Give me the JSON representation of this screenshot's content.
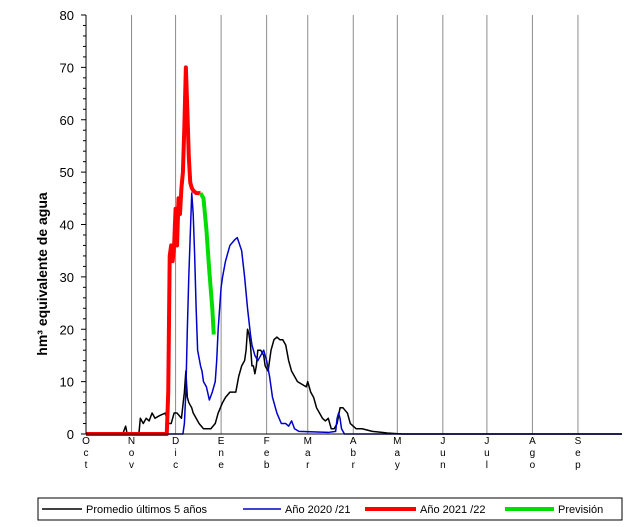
{
  "chart_data": {
    "type": "line",
    "title": "",
    "xlabel": "",
    "ylabel": "hm³ equivalente de agua",
    "ylim": [
      0,
      80
    ],
    "y_ticks": [
      0,
      10,
      20,
      30,
      40,
      50,
      60,
      70,
      80
    ],
    "xlim": [
      0,
      365
    ],
    "grid": "vertical",
    "legend_placement": "bottom",
    "months": [
      {
        "label": "Oct",
        "day": 0
      },
      {
        "label": "Nov",
        "day": 31
      },
      {
        "label": "Dic",
        "day": 61
      },
      {
        "label": "Ene",
        "day": 92
      },
      {
        "label": "Feb",
        "day": 123
      },
      {
        "label": "Mar",
        "day": 151
      },
      {
        "label": "Abr",
        "day": 182
      },
      {
        "label": "May",
        "day": 212
      },
      {
        "label": "Jun",
        "day": 243
      },
      {
        "label": "Jul",
        "day": 273
      },
      {
        "label": "Ago",
        "day": 304
      },
      {
        "label": "Sep",
        "day": 335
      }
    ],
    "series": [
      {
        "name": "Promedio últimos 5 años",
        "color": "#000000",
        "width": 1.5,
        "points": [
          [
            0,
            0
          ],
          [
            25,
            0
          ],
          [
            27,
            1.5
          ],
          [
            28,
            0
          ],
          [
            36,
            0
          ],
          [
            37,
            3
          ],
          [
            39,
            2
          ],
          [
            41,
            3
          ],
          [
            43,
            2.5
          ],
          [
            45,
            4
          ],
          [
            47,
            3
          ],
          [
            50,
            3.5
          ],
          [
            54,
            4
          ],
          [
            56,
            2
          ],
          [
            58,
            2
          ],
          [
            60,
            4
          ],
          [
            62,
            4
          ],
          [
            65,
            3
          ],
          [
            67,
            8
          ],
          [
            68,
            12
          ],
          [
            69,
            7
          ],
          [
            70,
            6
          ],
          [
            72,
            5
          ],
          [
            73,
            4
          ],
          [
            75,
            3
          ],
          [
            77,
            2
          ],
          [
            80,
            1
          ],
          [
            85,
            1
          ],
          [
            88,
            2
          ],
          [
            90,
            4
          ],
          [
            93,
            6
          ],
          [
            95,
            7
          ],
          [
            98,
            8
          ],
          [
            100,
            8
          ],
          [
            102,
            8
          ],
          [
            104,
            11
          ],
          [
            106,
            13
          ],
          [
            108,
            14
          ],
          [
            109,
            16
          ],
          [
            110,
            20
          ],
          [
            111,
            19
          ],
          [
            112,
            17
          ],
          [
            113,
            13
          ],
          [
            114,
            13
          ],
          [
            115,
            11.5
          ],
          [
            116,
            13
          ],
          [
            117,
            16
          ],
          [
            119,
            16
          ],
          [
            121,
            15
          ],
          [
            122,
            13
          ],
          [
            124,
            12
          ],
          [
            126,
            16
          ],
          [
            128,
            18
          ],
          [
            130,
            18.5
          ],
          [
            132,
            18
          ],
          [
            134,
            18
          ],
          [
            136,
            17
          ],
          [
            138,
            14
          ],
          [
            140,
            12
          ],
          [
            142,
            11
          ],
          [
            144,
            10
          ],
          [
            147,
            9.5
          ],
          [
            150,
            9
          ],
          [
            151,
            10
          ],
          [
            153,
            8
          ],
          [
            155,
            7
          ],
          [
            157,
            5
          ],
          [
            159,
            4
          ],
          [
            161,
            3
          ],
          [
            163,
            2.5
          ],
          [
            165,
            3
          ],
          [
            167,
            1
          ],
          [
            169,
            1
          ],
          [
            171,
            2
          ],
          [
            173,
            5
          ],
          [
            175,
            5
          ],
          [
            178,
            4
          ],
          [
            180,
            2
          ],
          [
            184,
            1
          ],
          [
            188,
            1
          ],
          [
            195,
            0.5
          ],
          [
            205,
            0.2
          ],
          [
            215,
            0
          ],
          [
            365,
            0
          ]
        ]
      },
      {
        "name": "Año 2020 /21",
        "color": "#0000CC",
        "width": 1.5,
        "points": [
          [
            0,
            0
          ],
          [
            66,
            0
          ],
          [
            67,
            2
          ],
          [
            68,
            8
          ],
          [
            69,
            20
          ],
          [
            70,
            30
          ],
          [
            71,
            38
          ],
          [
            72,
            46
          ],
          [
            73,
            42
          ],
          [
            74,
            34
          ],
          [
            75,
            24
          ],
          [
            76,
            16
          ],
          [
            78,
            13
          ],
          [
            79,
            12
          ],
          [
            80,
            10
          ],
          [
            82,
            9
          ],
          [
            84,
            6.5
          ],
          [
            86,
            8
          ],
          [
            88,
            10
          ],
          [
            89,
            14
          ],
          [
            90,
            20
          ],
          [
            91,
            24
          ],
          [
            92,
            28
          ],
          [
            93,
            30
          ],
          [
            95,
            33
          ],
          [
            98,
            36
          ],
          [
            101,
            37
          ],
          [
            103,
            37.5
          ],
          [
            106,
            35
          ],
          [
            108,
            30
          ],
          [
            110,
            24
          ],
          [
            112,
            19
          ],
          [
            113,
            17
          ],
          [
            114,
            16
          ],
          [
            115,
            15
          ],
          [
            117,
            14
          ],
          [
            119,
            15
          ],
          [
            121,
            16
          ],
          [
            123,
            14
          ],
          [
            125,
            11
          ],
          [
            127,
            7
          ],
          [
            130,
            4
          ],
          [
            133,
            2
          ],
          [
            136,
            2
          ],
          [
            138,
            1.5
          ],
          [
            140,
            2.5
          ],
          [
            142,
            1
          ],
          [
            145,
            0.5
          ],
          [
            165,
            0.3
          ],
          [
            170,
            0.5
          ],
          [
            171,
            3
          ],
          [
            172,
            4
          ],
          [
            173,
            3
          ],
          [
            174,
            1
          ],
          [
            176,
            0
          ],
          [
            365,
            0
          ]
        ]
      },
      {
        "name": "Año 2021 /22",
        "color": "#FF0000",
        "width": 4,
        "points": [
          [
            0,
            0
          ],
          [
            55,
            0
          ],
          [
            56,
            8
          ],
          [
            57,
            34
          ],
          [
            58,
            36
          ],
          [
            59,
            33
          ],
          [
            60,
            36
          ],
          [
            61,
            43
          ],
          [
            62,
            36
          ],
          [
            63,
            45
          ],
          [
            64,
            42
          ],
          [
            65,
            47
          ],
          [
            66,
            50
          ],
          [
            67,
            59
          ],
          [
            68,
            70
          ],
          [
            69,
            62
          ],
          [
            70,
            53
          ],
          [
            71,
            48
          ],
          [
            72,
            47
          ],
          [
            73,
            46.5
          ],
          [
            75,
            46
          ],
          [
            78,
            46
          ]
        ]
      },
      {
        "name": "Previsión",
        "color": "#00DD00",
        "width": 4,
        "points": [
          [
            78,
            46
          ],
          [
            80,
            45
          ],
          [
            82,
            39
          ],
          [
            84,
            31
          ],
          [
            86,
            24
          ],
          [
            87,
            19
          ]
        ]
      }
    ]
  }
}
